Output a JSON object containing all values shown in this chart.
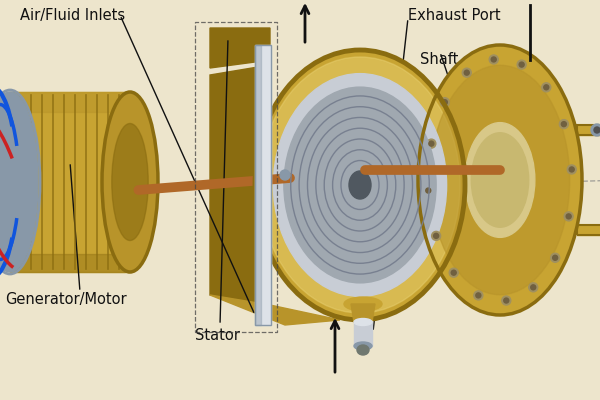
{
  "bg_color": "#ede5cc",
  "gold_color": "#c8a432",
  "gold_mid": "#b8942a",
  "gold_dark": "#8a6c10",
  "gold_light": "#e8d070",
  "silver_color": "#c8cdd5",
  "silver_dark": "#8898a8",
  "silver_light": "#dde2e8",
  "copper_color": "#b06828",
  "text_color": "#111111",
  "labels": {
    "air_fluid": "Air/Fluid Inlets",
    "exhaust": "Exhaust Port",
    "shaft": "Shaft",
    "generator": "Generator/Motor",
    "stator": "Stator"
  },
  "fontsize": 10.5,
  "arrow_color": "#111111"
}
